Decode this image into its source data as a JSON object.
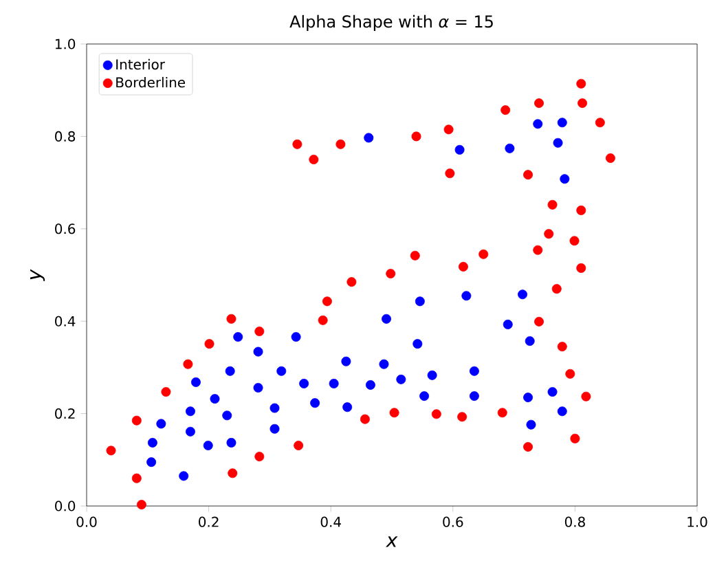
{
  "chart_data": {
    "type": "scatter",
    "title": "Alpha Shape with *α* = 15",
    "xlabel": "x",
    "ylabel": "y",
    "xlim": [
      0,
      1
    ],
    "ylim": [
      0,
      1
    ],
    "xticks": [
      {
        "value": 0,
        "label": "0.0"
      },
      0.2,
      0.4,
      0.6,
      0.8,
      {
        "value": 1,
        "label": "1.0"
      }
    ],
    "yticks": [
      {
        "value": 0,
        "label": "0.0"
      },
      0.2,
      0.4,
      0.6,
      0.8,
      {
        "value": 1,
        "label": "1.0"
      }
    ],
    "legend": "top left",
    "marker": "circle",
    "grid": false,
    "series": [
      {
        "name": "Interior",
        "color": "#0000ff",
        "x": [
          0.462,
          0.611,
          0.693,
          0.739,
          0.779,
          0.772,
          0.783,
          0.546,
          0.622,
          0.714,
          0.491,
          0.69,
          0.726,
          0.542,
          0.487,
          0.515,
          0.566,
          0.635,
          0.553,
          0.635,
          0.723,
          0.763,
          0.779,
          0.728,
          0.248,
          0.281,
          0.343,
          0.179,
          0.235,
          0.281,
          0.319,
          0.356,
          0.405,
          0.425,
          0.465,
          0.21,
          0.17,
          0.23,
          0.308,
          0.374,
          0.427,
          0.122,
          0.108,
          0.17,
          0.199,
          0.237,
          0.308,
          0.106,
          0.159
        ],
        "values": [
          0.797,
          0.771,
          0.774,
          0.827,
          0.83,
          0.786,
          0.708,
          0.443,
          0.455,
          0.458,
          0.405,
          0.393,
          0.357,
          0.351,
          0.307,
          0.274,
          0.283,
          0.292,
          0.238,
          0.238,
          0.235,
          0.247,
          0.205,
          0.176,
          0.366,
          0.334,
          0.366,
          0.268,
          0.292,
          0.256,
          0.292,
          0.265,
          0.265,
          0.313,
          0.262,
          0.232,
          0.205,
          0.196,
          0.212,
          0.223,
          0.214,
          0.178,
          0.137,
          0.161,
          0.131,
          0.137,
          0.167,
          0.095,
          0.065
        ]
      },
      {
        "name": "Borderline",
        "color": "#ff0000",
        "x": [
          0.04,
          0.082,
          0.082,
          0.09,
          0.13,
          0.166,
          0.201,
          0.237,
          0.239,
          0.283,
          0.283,
          0.347,
          0.387,
          0.394,
          0.434,
          0.456,
          0.498,
          0.504,
          0.538,
          0.573,
          0.615,
          0.681,
          0.723,
          0.8,
          0.818,
          0.792,
          0.779,
          0.741,
          0.77,
          0.54,
          0.593,
          0.595,
          0.686,
          0.741,
          0.81,
          0.812,
          0.841,
          0.858,
          0.723,
          0.763,
          0.81,
          0.757,
          0.799,
          0.739,
          0.81,
          0.65,
          0.617,
          0.345,
          0.372,
          0.416
        ],
        "values": [
          0.12,
          0.185,
          0.06,
          0.003,
          0.247,
          0.307,
          0.351,
          0.405,
          0.071,
          0.378,
          0.107,
          0.131,
          0.402,
          0.443,
          0.485,
          0.188,
          0.503,
          0.202,
          0.542,
          0.199,
          0.193,
          0.202,
          0.128,
          0.146,
          0.237,
          0.286,
          0.345,
          0.399,
          0.47,
          0.8,
          0.815,
          0.72,
          0.857,
          0.872,
          0.914,
          0.872,
          0.83,
          0.753,
          0.717,
          0.652,
          0.64,
          0.589,
          0.574,
          0.554,
          0.515,
          0.545,
          0.518,
          0.783,
          0.75,
          0.783
        ]
      }
    ]
  }
}
